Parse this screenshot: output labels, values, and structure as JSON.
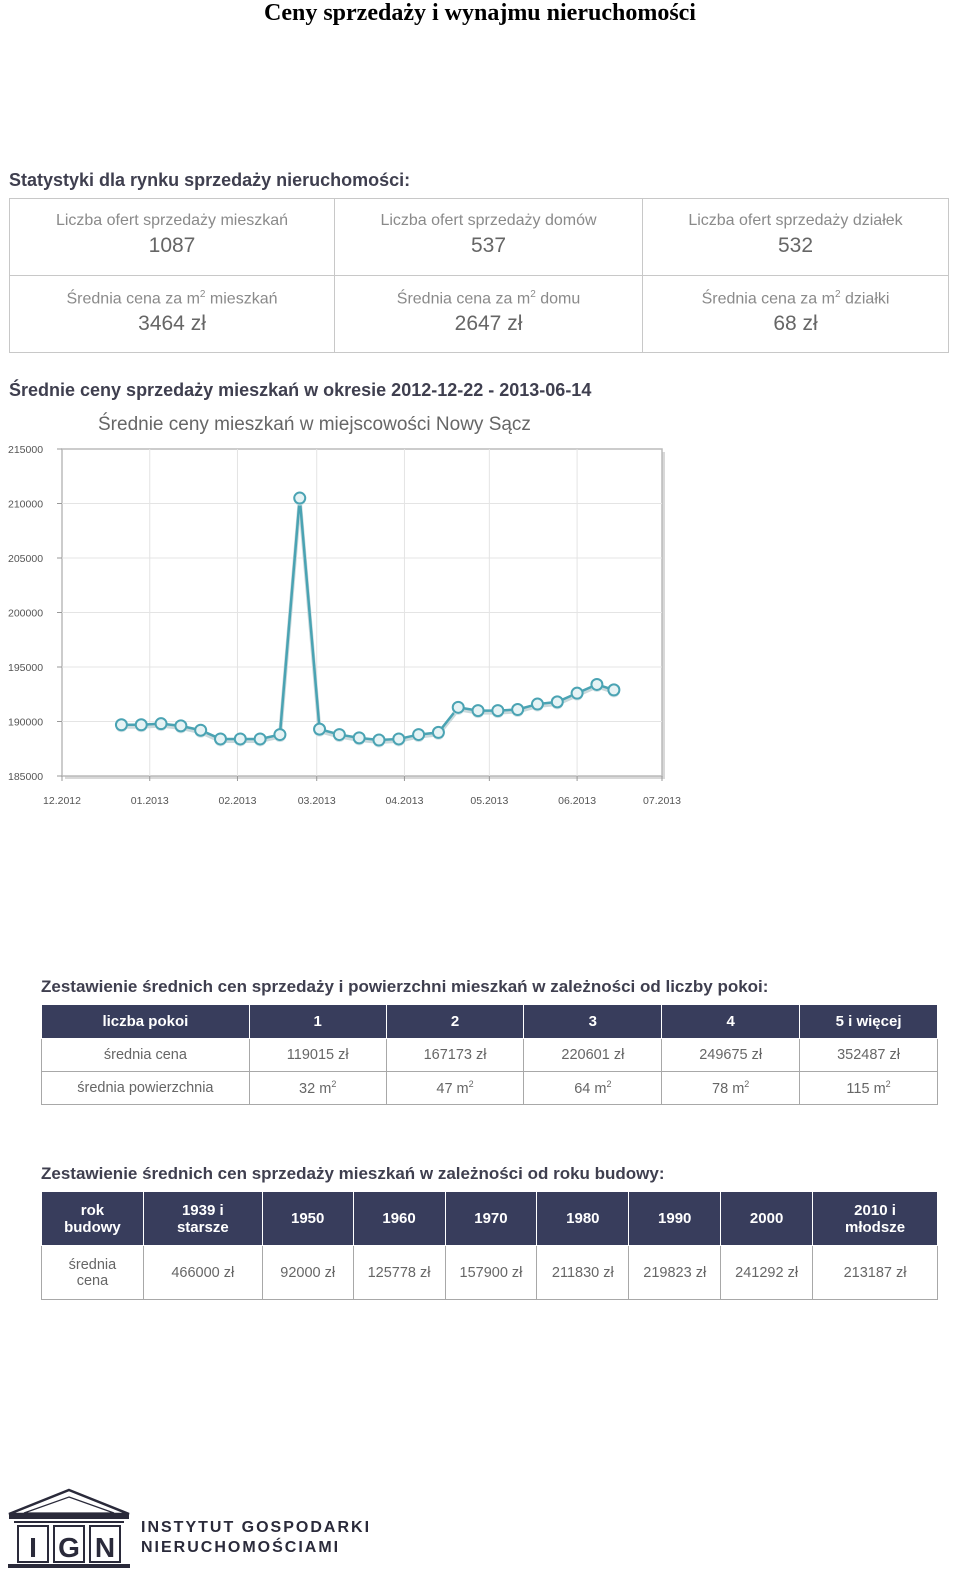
{
  "document": {
    "title": "Ceny sprzedaży i wynajmu nieruchomości"
  },
  "stats": {
    "heading": "Statystyki dla rynku sprzedaży nieruchomości:",
    "offers": [
      {
        "label": "Liczba ofert sprzedaży mieszkań",
        "value": "1087"
      },
      {
        "label": "Liczba ofert sprzedaży domów",
        "value": "537"
      },
      {
        "label": "Liczba ofert sprzedaży działek",
        "value": "532"
      }
    ],
    "prices": [
      {
        "label_pre": "Średnia cena za m",
        "label_sup": "2",
        "label_post": " mieszkań",
        "value": "3464 zł"
      },
      {
        "label_pre": "Średnia cena za m",
        "label_sup": "2",
        "label_post": " domu",
        "value": "2647 zł"
      },
      {
        "label_pre": "Średnia cena za m",
        "label_sup": "2",
        "label_post": " działki",
        "value": "68 zł"
      }
    ]
  },
  "chart_section": {
    "heading": "Średnie ceny sprzedaży mieszkań w okresie 2012-12-22 - 2013-06-14"
  },
  "chart_data": {
    "type": "line",
    "title": "Średnie ceny mieszkań w miejscowości Nowy Sącz",
    "xlabel": "",
    "ylabel": "",
    "x_ticks": [
      "12.2012",
      "01.2013",
      "02.2013",
      "03.2013",
      "04.2013",
      "05.2013",
      "06.2013",
      "07.2013"
    ],
    "y_ticks": [
      "185000",
      "190000",
      "195000",
      "200000",
      "205000",
      "210000",
      "215000"
    ],
    "ylim": [
      185000,
      215000
    ],
    "xlim": [
      "2012-12-01",
      "2013-07-01"
    ],
    "grid": true,
    "color": "#4aa3b3",
    "series": [
      {
        "points": [
          {
            "x": "2012-12-22",
            "y": 189700
          },
          {
            "x": "2012-12-29",
            "y": 189700
          },
          {
            "x": "2013-01-05",
            "y": 189800
          },
          {
            "x": "2013-01-12",
            "y": 189600
          },
          {
            "x": "2013-01-19",
            "y": 189200
          },
          {
            "x": "2013-01-26",
            "y": 188400
          },
          {
            "x": "2013-02-02",
            "y": 188400
          },
          {
            "x": "2013-02-09",
            "y": 188400
          },
          {
            "x": "2013-02-16",
            "y": 188800
          },
          {
            "x": "2013-02-23",
            "y": 210500
          },
          {
            "x": "2013-03-02",
            "y": 189300
          },
          {
            "x": "2013-03-09",
            "y": 188800
          },
          {
            "x": "2013-03-16",
            "y": 188500
          },
          {
            "x": "2013-03-23",
            "y": 188300
          },
          {
            "x": "2013-03-30",
            "y": 188400
          },
          {
            "x": "2013-04-06",
            "y": 188800
          },
          {
            "x": "2013-04-13",
            "y": 189000
          },
          {
            "x": "2013-04-20",
            "y": 191300
          },
          {
            "x": "2013-04-27",
            "y": 191000
          },
          {
            "x": "2013-05-04",
            "y": 191000
          },
          {
            "x": "2013-05-11",
            "y": 191100
          },
          {
            "x": "2013-05-18",
            "y": 191600
          },
          {
            "x": "2013-05-25",
            "y": 191800
          },
          {
            "x": "2013-06-01",
            "y": 192600
          },
          {
            "x": "2013-06-08",
            "y": 193400
          },
          {
            "x": "2013-06-14",
            "y": 192900
          }
        ]
      }
    ]
  },
  "rooms_table": {
    "heading": "Zestawienie średnich cen sprzedaży i powierzchni mieszkań w zależności od liczby pokoi:",
    "headers": [
      "liczba pokoi",
      "1",
      "2",
      "3",
      "4",
      "5 i więcej"
    ],
    "price_row": {
      "label": "średnia cena",
      "values": [
        "119015 zł",
        "167173 zł",
        "220601 zł",
        "249675 zł",
        "352487 zł"
      ]
    },
    "area_row": {
      "label": "średnia powierzchnia",
      "unit": "m",
      "unit_sup": "2",
      "values": [
        "32",
        "47",
        "64",
        "78",
        "115"
      ]
    }
  },
  "year_table": {
    "heading": "Zestawienie średnich cen sprzedaży mieszkań w zależności od roku budowy:",
    "corner_line1": "rok",
    "corner_line2": "budowy",
    "headers": [
      {
        "line1": "1939 i",
        "line2": "starsze"
      },
      {
        "line1": "1950",
        "line2": ""
      },
      {
        "line1": "1960",
        "line2": ""
      },
      {
        "line1": "1970",
        "line2": ""
      },
      {
        "line1": "1980",
        "line2": ""
      },
      {
        "line1": "1990",
        "line2": ""
      },
      {
        "line1": "2000",
        "line2": ""
      },
      {
        "line1": "2010 i",
        "line2": "młodsze"
      }
    ],
    "row_label_line1": "średnia",
    "row_label_line2": "cena",
    "values": [
      "466000 zł",
      "92000 zł",
      "125778 zł",
      "157900 zł",
      "211830 zł",
      "219823 zł",
      "241292 zł",
      "213187 zł"
    ]
  },
  "logo": {
    "letters": [
      "I",
      "G",
      "N"
    ],
    "line1": "INSTYTUT GOSPODARKI",
    "line2": "NIERUCHOMOŚCIAMI"
  }
}
